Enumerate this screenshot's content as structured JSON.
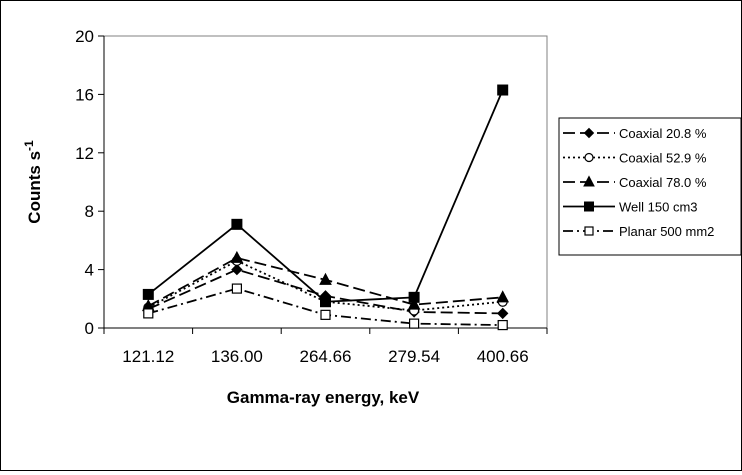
{
  "chart_data": {
    "type": "line",
    "title": "",
    "xlabel": "Gamma-ray energy, keV",
    "ylabel": "Counts s",
    "ylabel_superscript": "-1",
    "categories": [
      "121.12",
      "136.00",
      "264.66",
      "279.54",
      "400.66"
    ],
    "yticks": [
      "0",
      "4",
      "8",
      "12",
      "16",
      "20"
    ],
    "ylim": [
      0,
      20
    ],
    "grid": false,
    "legend_position": "right",
    "series": [
      {
        "name": "Coaxial 20.8 %",
        "values": [
          1.3,
          4.0,
          2.2,
          1.1,
          1.0
        ],
        "marker": "diamond-filled",
        "dash": "long-dash"
      },
      {
        "name": "Coaxial 52.9 %",
        "values": [
          1.4,
          4.6,
          1.8,
          1.2,
          1.8
        ],
        "marker": "circle-open",
        "dash": "dot"
      },
      {
        "name": "Coaxial 78.0 %",
        "values": [
          1.5,
          4.8,
          3.3,
          1.6,
          2.1
        ],
        "marker": "triangle-filled",
        "dash": "long-dash"
      },
      {
        "name": "Well 150 cm3",
        "values": [
          2.3,
          7.1,
          1.8,
          2.1,
          16.3
        ],
        "marker": "square-filled",
        "dash": "solid"
      },
      {
        "name": "Planar 500 mm2",
        "values": [
          1.0,
          2.7,
          0.9,
          0.3,
          0.2
        ],
        "marker": "square-open",
        "dash": "dash-dot"
      }
    ]
  }
}
